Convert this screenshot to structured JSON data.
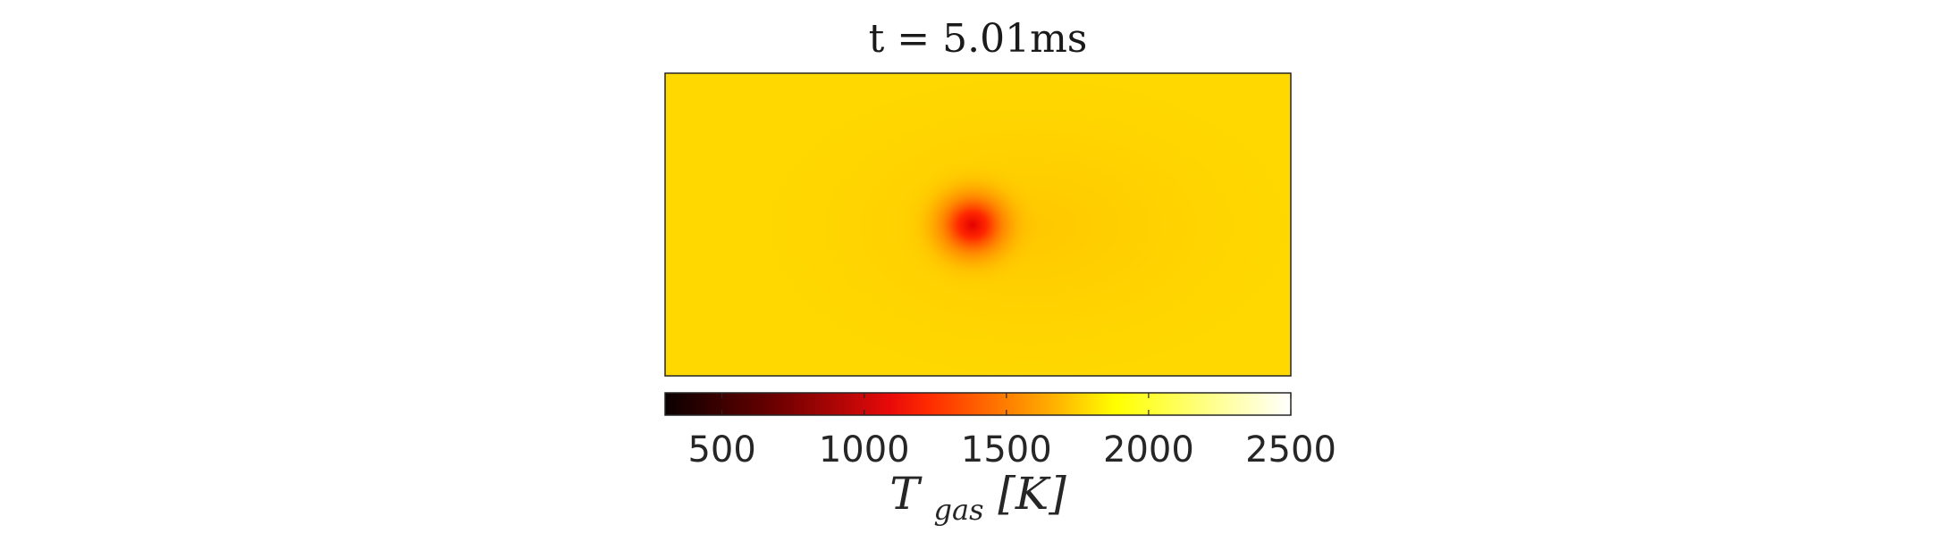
{
  "chart_data": {
    "type": "heatmap",
    "title": "t = 5.01ms",
    "colorbar": {
      "label_main": "T",
      "label_sub": "gas",
      "label_unit": "[K]",
      "range": [
        300,
        2500
      ],
      "ticks": [
        500,
        1000,
        1500,
        2000,
        2500
      ],
      "tick_labels": [
        "500",
        "1000",
        "1500",
        "2000",
        "2500"
      ],
      "colormap": "hot",
      "orientation": "horizontal",
      "location": "bottom"
    },
    "field": {
      "background_value": 1900,
      "hotspot_value": 1050,
      "wake_value": 1820
    },
    "axes_visible": false,
    "grid": false
  }
}
